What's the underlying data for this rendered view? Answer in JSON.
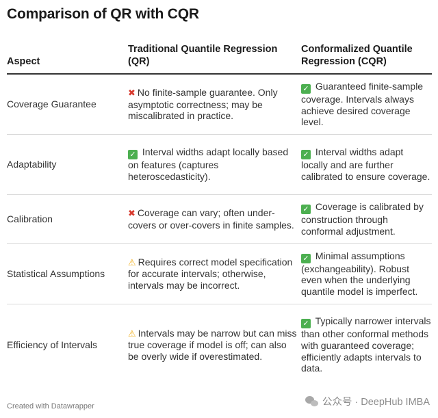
{
  "title": "Comparison of QR with CQR",
  "table": {
    "headers": {
      "aspect": "Aspect",
      "qr": "Traditional Quantile Regression (QR)",
      "cqr": "Conformalized Quantile Regression (CQR)"
    },
    "rows": [
      {
        "aspect": "Coverage Guarantee",
        "qr_icon": "cross-mark-icon",
        "qr": "No finite-sample guarantee. Only asymptotic correctness; may be miscalibrated in practice.",
        "cqr_icon": "check-mark-icon",
        "cqr": "Guaranteed finite-sample coverage. Intervals always achieve desired coverage level."
      },
      {
        "aspect": "Adaptability",
        "qr_icon": "check-mark-icon",
        "qr": "Interval widths adapt locally based on features (captures heteroscedasticity).",
        "cqr_icon": "check-mark-icon",
        "cqr": "Interval widths adapt locally and are further calibrated to ensure coverage."
      },
      {
        "aspect": "Calibration",
        "qr_icon": "cross-mark-icon",
        "qr": "Coverage can vary; often under-covers or over-covers in finite samples.",
        "cqr_icon": "check-mark-icon",
        "cqr": "Coverage is calibrated by construction through conformal adjustment."
      },
      {
        "aspect": "Statistical Assumptions",
        "qr_icon": "warning-icon",
        "qr": "Requires correct model specification for accurate intervals; otherwise, intervals may be incorrect.",
        "cqr_icon": "check-mark-icon",
        "cqr": "Minimal assumptions (exchangeability). Robust even when the underlying quantile model is imperfect."
      },
      {
        "aspect": "Efficiency of Intervals",
        "qr_icon": "warning-icon",
        "qr": "Intervals may be narrow but can miss true coverage if model is off; can also be overly wide if overestimated.",
        "cqr_icon": "check-mark-icon",
        "cqr": "Typically narrower intervals than other conformal methods with guaranteed coverage; efficiently adapts intervals to data."
      }
    ]
  },
  "footer": "Created with Datawrapper",
  "watermark": "公众号 · DeepHub IMBA",
  "colors": {
    "cross": "#d83a2e",
    "check": "#4caf50",
    "warning": "#f2b01e"
  }
}
